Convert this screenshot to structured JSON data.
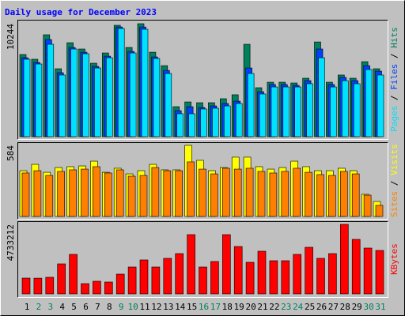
{
  "chart_data": [
    {
      "type": "bar",
      "title": "Daily usage for December 2023",
      "ylim": [
        0,
        10244
      ],
      "yticks": [
        10244
      ],
      "series": [
        {
          "name": "Hits",
          "color": "#00805c",
          "values": [
            7450,
            7020,
            9240,
            6160,
            8520,
            7950,
            6660,
            7590,
            10100,
            8090,
            10244,
            7660,
            6440,
            2720,
            3150,
            3080,
            3080,
            3440,
            3800,
            8380,
            4440,
            4940,
            4940,
            4870,
            5300,
            8590,
            4940,
            5590,
            5300,
            6800,
            6160
          ]
        },
        {
          "name": "Files",
          "color": "#0040ff",
          "values": [
            7160,
            6730,
            8810,
            5800,
            8090,
            7660,
            6370,
            7300,
            9950,
            7730,
            9950,
            7230,
            6010,
            2360,
            2720,
            2650,
            2790,
            3010,
            3220,
            6230,
            4080,
            4730,
            4730,
            4650,
            5080,
            7950,
            4730,
            5370,
            5080,
            6440,
            5940
          ]
        },
        {
          "name": "Pages",
          "color": "#00e0ff",
          "values": [
            7020,
            6590,
            8380,
            5590,
            7950,
            7520,
            6230,
            7160,
            9810,
            7590,
            9740,
            7090,
            5730,
            2080,
            2080,
            2510,
            2580,
            2790,
            3010,
            5730,
            3870,
            4510,
            4510,
            4510,
            4800,
            7160,
            4510,
            5080,
            4800,
            6090,
            5590
          ]
        }
      ]
    },
    {
      "type": "bar",
      "ylim": [
        0,
        584
      ],
      "yticks": [
        584
      ],
      "series": [
        {
          "name": "Visits",
          "color": "#ffff00",
          "values": [
            376,
            428,
            363,
            402,
            409,
            415,
            454,
            363,
            396,
            350,
            376,
            428,
            383,
            383,
            584,
            461,
            376,
            402,
            487,
            487,
            409,
            389,
            402,
            454,
            409,
            376,
            376,
            396,
            376,
            182,
            123
          ]
        },
        {
          "name": "Sites",
          "color": "#ff8000",
          "values": [
            357,
            376,
            337,
            370,
            383,
            389,
            409,
            357,
            383,
            331,
            337,
            402,
            376,
            376,
            448,
            389,
            350,
            396,
            389,
            396,
            370,
            357,
            370,
            396,
            363,
            344,
            337,
            370,
            350,
            175,
            91
          ]
        }
      ]
    },
    {
      "type": "bar",
      "ylim": [
        0,
        4733212
      ],
      "yticks": [
        4733212
      ],
      "categories": [
        "1",
        "2",
        "3",
        "4",
        "5",
        "6",
        "7",
        "8",
        "9",
        "10",
        "11",
        "12",
        "13",
        "14",
        "15",
        "16",
        "17",
        "18",
        "19",
        "20",
        "21",
        "22",
        "23",
        "24",
        "25",
        "26",
        "27",
        "28",
        "29",
        "30",
        "31"
      ],
      "category_colors": [
        "#000000",
        "#00805c",
        "#00805c",
        "#000000",
        "#000000",
        "#000000",
        "#000000",
        "#000000",
        "#00805c",
        "#00805c",
        "#000000",
        "#000000",
        "#000000",
        "#000000",
        "#000000",
        "#00805c",
        "#00805c",
        "#000000",
        "#000000",
        "#000000",
        "#000000",
        "#000000",
        "#00805c",
        "#00805c",
        "#000000",
        "#000000",
        "#000000",
        "#000000",
        "#000000",
        "#00805c",
        "#00805c"
      ],
      "series": [
        {
          "name": "KBytes",
          "color": "#ff0000",
          "values": [
            1075000,
            1070000,
            1130000,
            2044000,
            2689000,
            699000,
            861000,
            807000,
            1345000,
            1829000,
            2313000,
            1829000,
            2420000,
            2743000,
            4034000,
            1829000,
            2205000,
            4034000,
            3227000,
            2151000,
            2904000,
            2259000,
            2259000,
            2689000,
            3173000,
            2420000,
            2743000,
            4733212,
            3711000,
            3120000,
            2958000
          ]
        }
      ]
    }
  ]
}
